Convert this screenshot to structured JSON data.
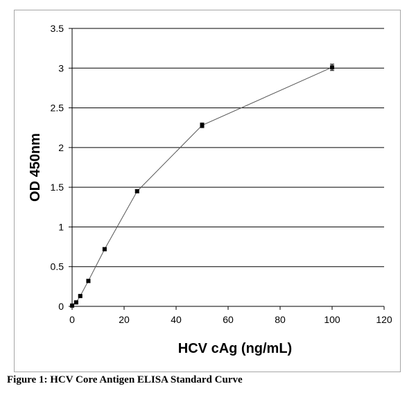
{
  "chart_data": {
    "type": "line",
    "title": "",
    "xlabel": "HCV cAg (ng/mL)",
    "ylabel": "OD 450nm",
    "xlim": [
      0,
      120
    ],
    "ylim": [
      0,
      3.5
    ],
    "x_ticks": [
      0,
      20,
      40,
      60,
      80,
      100,
      120
    ],
    "y_ticks": [
      0,
      0.5,
      1,
      1.5,
      2,
      2.5,
      3,
      3.5
    ],
    "x_tick_labels": [
      "0",
      "20",
      "40",
      "60",
      "80",
      "100",
      "120"
    ],
    "y_tick_labels": [
      "0",
      "0.5",
      "1",
      "1.5",
      "2",
      "2.5",
      "3",
      "3.5"
    ],
    "grid": "horizontal",
    "series": [
      {
        "name": "HCV Core Antigen",
        "x": [
          0,
          1.56,
          3.13,
          6.25,
          12.5,
          25,
          50,
          100
        ],
        "y": [
          0.01,
          0.05,
          0.13,
          0.32,
          0.72,
          1.45,
          2.28,
          3.01
        ],
        "error": [
          0.01,
          0.01,
          0.01,
          0.02,
          0.02,
          0.02,
          0.03,
          0.04
        ],
        "color": "#000000",
        "line_color": "#555555"
      }
    ]
  },
  "caption": "Figure 1: HCV Core Antigen ELISA Standard Curve"
}
